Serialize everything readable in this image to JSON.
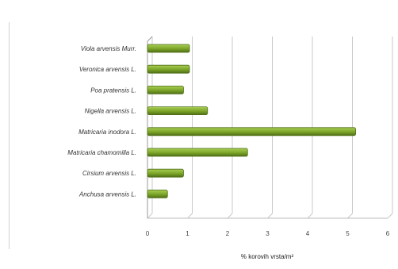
{
  "chart_data": {
    "type": "bar",
    "orientation": "horizontal",
    "categories": [
      "Viola arvensis Murr.",
      "Veronica arvensis L.",
      "Poa pratensis L.",
      "Nigella arvensis L.",
      "Matricaria inodora L.",
      "Matricaria chamomilla L.",
      "Cirsium arvensis L.",
      "Anchusa arvensis L."
    ],
    "values": [
      1.05,
      1.05,
      0.9,
      1.5,
      5.2,
      2.5,
      0.9,
      0.5
    ],
    "xlabel": "% korovih vrsta/m²",
    "ylabel": "",
    "xlim": [
      0,
      6
    ],
    "xticks": [
      "0",
      "1",
      "2",
      "3",
      "4",
      "5",
      "6"
    ],
    "grid": true,
    "legend": "none",
    "bar_color": "#7ba428",
    "bar_highlight": "#a9cf55",
    "bar_edge": "#4f6f17"
  }
}
